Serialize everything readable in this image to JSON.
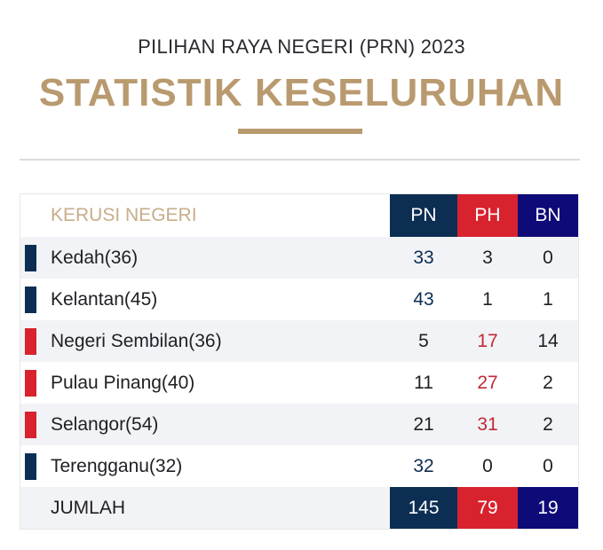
{
  "header": {
    "subtitle": "PILIHAN RAYA NEGERI (PRN) 2023",
    "title": "STATISTIK KESELURUHAN"
  },
  "colors": {
    "gold": "#b99a6f",
    "PN": "#0c2e52",
    "PH": "#d8222e",
    "BN": "#0e0a78"
  },
  "table": {
    "columns": [
      "KERUSI NEGERI",
      "PN",
      "PH",
      "BN"
    ],
    "rows": [
      {
        "state": "Kedah(36)",
        "winner": "PN",
        "PN": "33",
        "PH": "3",
        "BN": "0"
      },
      {
        "state": "Kelantan(45)",
        "winner": "PN",
        "PN": "43",
        "PH": "1",
        "BN": "1"
      },
      {
        "state": "Negeri Sembilan(36)",
        "winner": "PH",
        "PN": "5",
        "PH": "17",
        "BN": "14"
      },
      {
        "state": "Pulau Pinang(40)",
        "winner": "PH",
        "PN": "11",
        "PH": "27",
        "BN": "2"
      },
      {
        "state": "Selangor(54)",
        "winner": "PH",
        "PN": "21",
        "PH": "31",
        "BN": "2"
      },
      {
        "state": "Terengganu(32)",
        "winner": "PN",
        "PN": "32",
        "PH": "0",
        "BN": "0"
      }
    ],
    "total": {
      "label": "JUMLAH",
      "PN": "145",
      "PH": "79",
      "BN": "19"
    }
  },
  "chart_data": {
    "type": "table",
    "title": "STATISTIK KESELURUHAN",
    "subtitle": "PILIHAN RAYA NEGERI (PRN) 2023",
    "categories": [
      "Kedah(36)",
      "Kelantan(45)",
      "Negeri Sembilan(36)",
      "Pulau Pinang(40)",
      "Selangor(54)",
      "Terengganu(32)"
    ],
    "series": [
      {
        "name": "PN",
        "values": [
          33,
          43,
          5,
          11,
          21,
          32
        ]
      },
      {
        "name": "PH",
        "values": [
          3,
          1,
          17,
          27,
          31,
          0
        ]
      },
      {
        "name": "BN",
        "values": [
          0,
          1,
          14,
          2,
          2,
          0
        ]
      }
    ],
    "totals": {
      "PN": 145,
      "PH": 79,
      "BN": 19
    },
    "row_header": "KERUSI NEGERI",
    "total_label": "JUMLAH"
  }
}
